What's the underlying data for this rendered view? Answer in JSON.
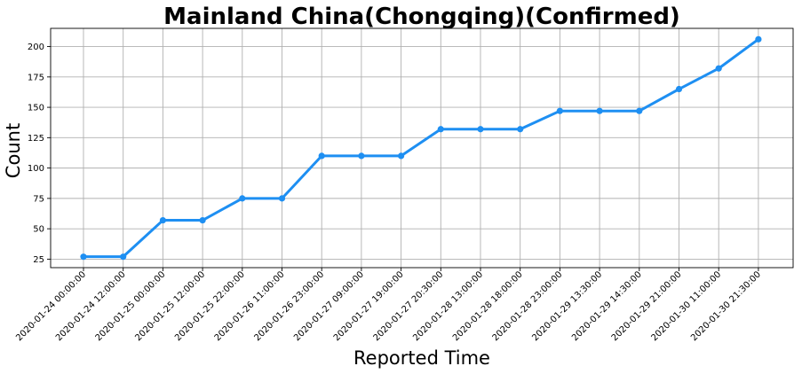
{
  "chart_data": {
    "type": "line",
    "title": "Mainland China(Chongqing)(Confirmed)",
    "xlabel": "Reported Time",
    "ylabel": "Count",
    "categories": [
      "2020-01-24 00:00:00",
      "2020-01-24 12:00:00",
      "2020-01-25 00:00:00",
      "2020-01-25 12:00:00",
      "2020-01-25 22:00:00",
      "2020-01-26 11:00:00",
      "2020-01-26 23:00:00",
      "2020-01-27 09:00:00",
      "2020-01-27 19:00:00",
      "2020-01-27 20:30:00",
      "2020-01-28 13:00:00",
      "2020-01-28 18:00:00",
      "2020-01-28 23:00:00",
      "2020-01-29 13:30:00",
      "2020-01-29 14:30:00",
      "2020-01-29 21:00:00",
      "2020-01-30 11:00:00",
      "2020-01-30 21:30:00"
    ],
    "series": [
      {
        "values": [
          27,
          27,
          57,
          57,
          75,
          75,
          110,
          110,
          110,
          132,
          132,
          132,
          147,
          147,
          147,
          165,
          182,
          206
        ],
        "color": "#1e8ff2"
      }
    ],
    "ylim": [
      18,
      215
    ],
    "yticks": [
      25,
      50,
      75,
      100,
      125,
      150,
      175,
      200
    ],
    "grid": true,
    "legend": "none"
  }
}
